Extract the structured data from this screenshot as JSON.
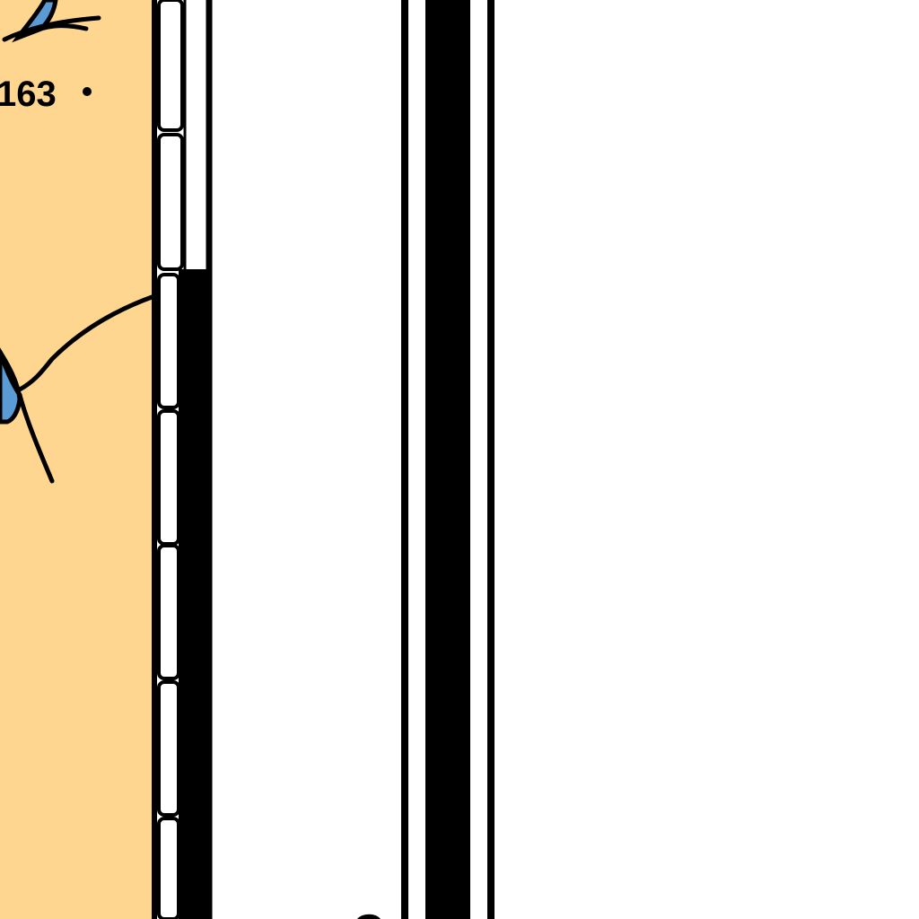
{
  "map": {
    "colors": {
      "land": "#FFD68F",
      "water": "#5B9BD5",
      "lines": "#000000",
      "paper": "#FFFFFF"
    },
    "elevation_point": {
      "label": "163",
      "icon": "elevation-dot-icon"
    },
    "features": [
      {
        "name": "land-area",
        "kind": "land"
      },
      {
        "name": "stream-lines",
        "kind": "watercourse"
      },
      {
        "name": "map-frame-scale-bar",
        "kind": "neatline-scale-bar"
      },
      {
        "name": "map-margin-borders",
        "kind": "border-lines"
      }
    ]
  }
}
